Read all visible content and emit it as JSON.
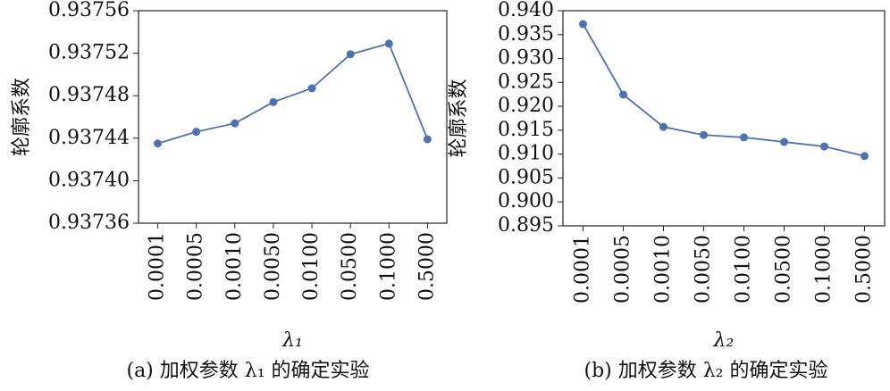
{
  "chart_data": [
    {
      "type": "line",
      "ylabel": "轮廓系数",
      "xlabel": "λ₁",
      "caption": "(a) 加权参数 λ₁ 的确定实验",
      "categories": [
        "0.0001",
        "0.0005",
        "0.0010",
        "0.0050",
        "0.0100",
        "0.0500",
        "0.1000",
        "0.5000"
      ],
      "values": [
        0.937435,
        0.937446,
        0.937454,
        0.937474,
        0.937487,
        0.937519,
        0.937529,
        0.937439
      ],
      "color": "#4c72b0",
      "ylim": [
        0.93736,
        0.93756
      ],
      "yticks": [
        0.93736,
        {
          "value": 0.9374,
          "label": "0.93740"
        },
        0.93744,
        0.93748,
        0.93752,
        0.93756
      ]
    },
    {
      "type": "line",
      "ylabel": "轮廓系数",
      "xlabel": "λ₂",
      "caption": "(b) 加权参数 λ₂ 的确定实验",
      "categories": [
        "0.0001",
        "0.0005",
        "0.0010",
        "0.0050",
        "0.0100",
        "0.0500",
        "0.1000",
        "0.5000"
      ],
      "values": [
        0.9372,
        0.92245,
        0.9157,
        0.914,
        0.9135,
        0.91255,
        0.9116,
        0.9096
      ],
      "color": "#4c72b0",
      "ylim": [
        0.895,
        0.94
      ],
      "yticks": [
        0.895,
        {
          "value": 0.9,
          "label": "0.900"
        },
        0.905,
        {
          "value": 0.91,
          "label": "0.910"
        },
        0.915,
        {
          "value": 0.92,
          "label": "0.920"
        },
        0.925,
        {
          "value": 0.93,
          "label": "0.930"
        },
        0.935,
        {
          "value": 0.94,
          "label": "0.940"
        }
      ]
    }
  ]
}
